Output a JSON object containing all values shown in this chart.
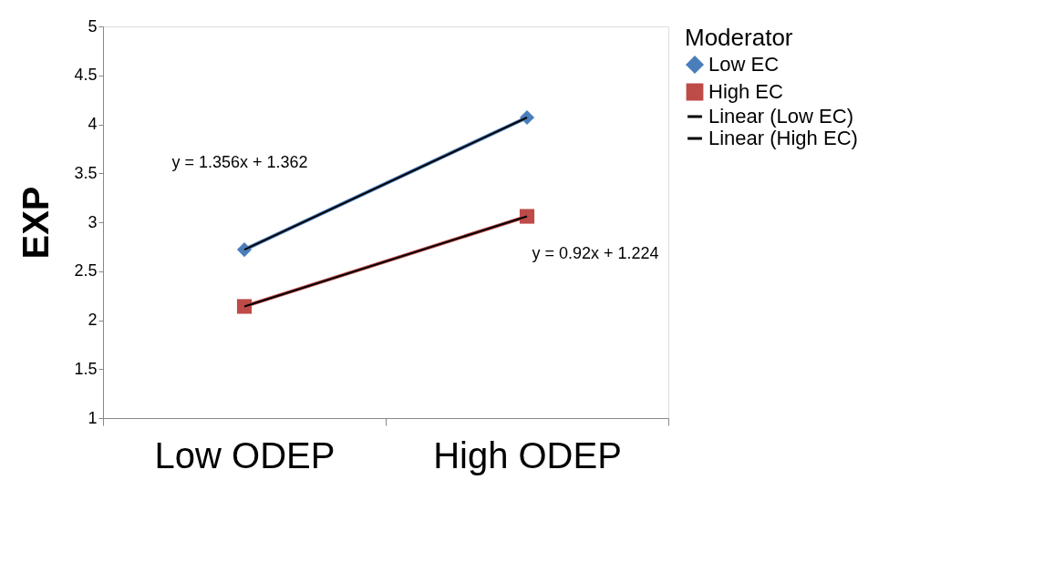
{
  "chart_data": {
    "type": "line",
    "ylabel": "EXP",
    "legend_title": "Moderator",
    "legend": "right",
    "grid": false,
    "categories": [
      "Low ODEP",
      "High ODEP"
    ],
    "ylim": [
      1,
      5
    ],
    "yticks": [
      1,
      1.5,
      2,
      2.5,
      3,
      3.5,
      4,
      4.5,
      5
    ],
    "annotations": [
      "y = 1.356x + 1.362",
      "y = 0.92x + 1.224"
    ],
    "series": [
      {
        "name": "Low EC",
        "color": "#4a7ebb",
        "marker": "diamond",
        "values": [
          2.72,
          4.07
        ]
      },
      {
        "name": "High EC",
        "color": "#be4b48",
        "marker": "square",
        "values": [
          2.14,
          3.06
        ]
      },
      {
        "name": "Linear (Low EC)",
        "color": "#000000",
        "marker": "none",
        "values": [
          2.72,
          4.07
        ]
      },
      {
        "name": "Linear (High EC)",
        "color": "#000000",
        "marker": "none",
        "values": [
          2.14,
          3.06
        ]
      }
    ]
  }
}
